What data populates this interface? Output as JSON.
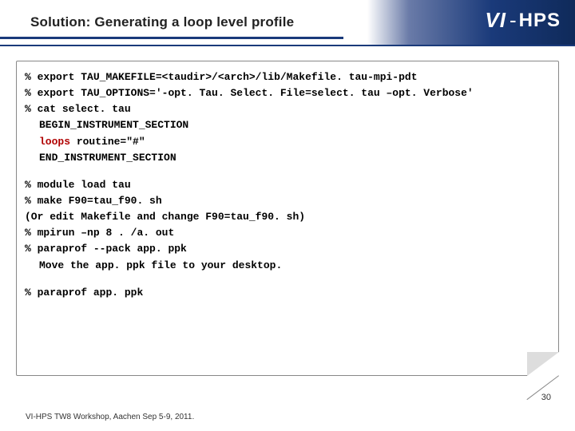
{
  "header": {
    "title": "Solution: Generating a loop level profile",
    "logo_vi": "VI",
    "logo_dash": "-",
    "logo_hps": "HPS"
  },
  "code": {
    "l1_pct": "%",
    "l1": "export TAU_MAKEFILE=<taudir>/<arch>/lib/Makefile. tau-mpi-pdt",
    "l2_pct": "%",
    "l2": "export TAU_OPTIONS='-opt. Tau. Select. File=select. tau –opt. Verbose'",
    "l3_pct": "%",
    "l3": "cat select. tau",
    "l4": "BEGIN_INSTRUMENT_SECTION",
    "l5a": "loops",
    "l5b": " routine=\"#\"",
    "l6": "END_INSTRUMENT_SECTION",
    "b2_l1_pct": "%",
    "b2_l1": "module load tau",
    "b2_l2_pct": "%",
    "b2_l2": "make F90=tau_f90. sh",
    "b2_l3": "(Or edit Makefile and change F90=tau_f90. sh)",
    "b2_l4_pct": "%",
    "b2_l4": "mpirun –np 8 . /a. out",
    "b2_l5_pct": "%",
    "b2_l5": "paraprof --pack app. ppk",
    "b2_l6": "Move the app. ppk file to your desktop.",
    "b3_l1_pct": "%",
    "b3_l1": "paraprof app. ppk"
  },
  "footer": {
    "text": "VI-HPS TW8 Workshop, Aachen Sep 5-9, 2011.",
    "page": "30"
  }
}
